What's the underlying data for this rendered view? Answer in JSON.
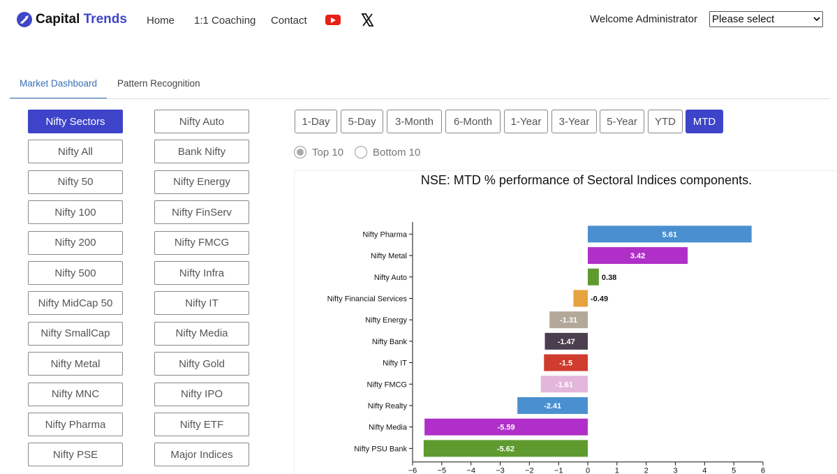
{
  "brand": {
    "part1": "Capital ",
    "part2": "Trends",
    "accent_color": "#3f46c9"
  },
  "nav": {
    "home": "Home",
    "coaching": "1:1 Coaching",
    "contact": "Contact",
    "youtube_icon": "youtube-icon",
    "x_icon": "x-icon"
  },
  "user": {
    "welcome": "Welcome Administrator",
    "select_value": "Please select"
  },
  "tabs": {
    "dashboard": "Market Dashboard",
    "pattern": "Pattern Recognition"
  },
  "sectors_left": [
    "Nifty Sectors",
    "Nifty All",
    "Nifty 50",
    "Nifty 100",
    "Nifty 200",
    "Nifty 500",
    "Nifty MidCap 50",
    "Nifty SmallCap",
    "Nifty Metal",
    "Nifty MNC",
    "Nifty Pharma",
    "Nifty PSE"
  ],
  "sectors_right": [
    "Nifty Auto",
    "Bank Nifty",
    "Nifty Energy",
    "Nifty FinServ",
    "Nifty FMCG",
    "Nifty Infra",
    "Nifty IT",
    "Nifty Media",
    "Nifty Gold",
    "Nifty IPO",
    "Nifty ETF",
    "Major Indices"
  ],
  "active_sector": "Nifty Sectors",
  "periods": [
    "1-Day",
    "5-Day",
    "3-Month",
    "6-Month",
    "1-Year",
    "3-Year",
    "5-Year",
    "YTD",
    "MTD"
  ],
  "active_period": "MTD",
  "radio": {
    "top": "Top 10",
    "bottom": "Bottom 10",
    "selected": "Top 10"
  },
  "chart_data": {
    "type": "bar",
    "orientation": "horizontal",
    "title": "NSE: MTD % performance of Sectoral Indices components.",
    "categories": [
      "Nifty Pharma",
      "Nifty Metal",
      "Nifty Auto",
      "Nifty Financial Services",
      "Nifty Energy",
      "Nifty Bank",
      "Nifty IT",
      "Nifty FMCG",
      "Nifty Realty",
      "Nifty Media",
      "Nifty PSU Bank"
    ],
    "values": [
      5.61,
      3.42,
      0.38,
      -0.49,
      -1.31,
      -1.47,
      -1.5,
      -1.61,
      -2.41,
      -5.59,
      -5.62
    ],
    "value_labels": [
      "5.61",
      "3.42",
      "0.38",
      "-0.49",
      "-1.31",
      "-1.47",
      "-1.5",
      "-1.61",
      "-2.41",
      "-5.59",
      "-5.62"
    ],
    "colors": [
      "#4a90d0",
      "#b02fc8",
      "#5f9a2f",
      "#e6a23c",
      "#b3a899",
      "#4b3e4f",
      "#d03c2e",
      "#e3b7dc",
      "#4a90d0",
      "#b02fc8",
      "#5f9a2f"
    ],
    "xlim": [
      -6,
      6
    ],
    "xticks": [
      -6,
      -5,
      -4,
      -3,
      -2,
      -1,
      0,
      1,
      2,
      3,
      4,
      5,
      6
    ],
    "xtick_labels": [
      "−6",
      "−5",
      "−4",
      "−3",
      "−2",
      "−1",
      "0",
      "1",
      "2",
      "3",
      "4",
      "5",
      "6"
    ],
    "grid": false,
    "legend": "none"
  }
}
